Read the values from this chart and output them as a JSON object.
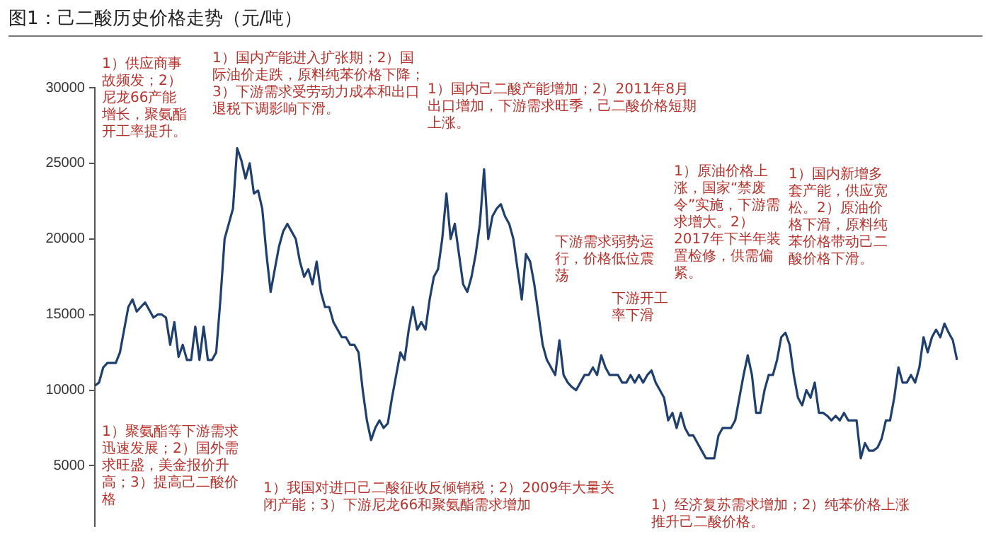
{
  "chart_data": {
    "type": "line",
    "title": "图1：己二酸历史价格走势（元/吨）",
    "categories": [
      null,
      null,
      null,
      null,
      null,
      null,
      null,
      null,
      null,
      null,
      null,
      null,
      null,
      null,
      null,
      null,
      null,
      null,
      null,
      null,
      null,
      null,
      null,
      null,
      null,
      null,
      null,
      null,
      null,
      null,
      null,
      null,
      null,
      null,
      null,
      null,
      null,
      null,
      null,
      null,
      null,
      null,
      null,
      null,
      null,
      null,
      null,
      null,
      null,
      null,
      null,
      null,
      null,
      null,
      null,
      null,
      null,
      null,
      null,
      null,
      null,
      null,
      null,
      null,
      null,
      null,
      null,
      null,
      null,
      null,
      null,
      null,
      null,
      null,
      null,
      null,
      null,
      null,
      null,
      null,
      null,
      null,
      null,
      null,
      null,
      null,
      null,
      null,
      null,
      null,
      null,
      null,
      null,
      null,
      null,
      null,
      null,
      null,
      null,
      null,
      null,
      null,
      null,
      null,
      null,
      null,
      null,
      null,
      null,
      null,
      null,
      null,
      null,
      null,
      null,
      null,
      null,
      null,
      null,
      null,
      null,
      null,
      null,
      null,
      null,
      null,
      null,
      null,
      null,
      null,
      null,
      null,
      null,
      null,
      null,
      null,
      null,
      null,
      null,
      null,
      null,
      null,
      null,
      null,
      null,
      null,
      null,
      null,
      null,
      null,
      null,
      null,
      null,
      null,
      null,
      null,
      null,
      null,
      null,
      null,
      null,
      null,
      null,
      null,
      null,
      null,
      null,
      null,
      null,
      null,
      null,
      null,
      null,
      null,
      null,
      null,
      null,
      null,
      null,
      null,
      null,
      null,
      null,
      null,
      null,
      null,
      null,
      null,
      null,
      null,
      null,
      null,
      null,
      null,
      null,
      null,
      null,
      null,
      null,
      null,
      null,
      null,
      null,
      null,
      null,
      null,
      null
    ],
    "series": [
      {
        "color": "#1f3f6e",
        "values": [
          10300,
          10500,
          11500,
          11800,
          11800,
          11800,
          12500,
          14000,
          15500,
          16000,
          15200,
          15500,
          15800,
          15300,
          14800,
          15000,
          15000,
          14800,
          13000,
          14500,
          12200,
          13000,
          12000,
          12000,
          14200,
          12000,
          14200,
          12000,
          12000,
          12500,
          16000,
          20000,
          21000,
          22000,
          26000,
          25200,
          24000,
          25000,
          23000,
          23200,
          22000,
          19000,
          16500,
          18000,
          19500,
          20500,
          21000,
          20500,
          20000,
          18500,
          17500,
          18000,
          17000,
          18500,
          16500,
          15500,
          15500,
          14500,
          14000,
          13500,
          13500,
          13000,
          13000,
          12500,
          10000,
          8000,
          6700,
          7500,
          8000,
          7500,
          7800,
          9500,
          11000,
          12500,
          12000,
          14000,
          15500,
          14000,
          14500,
          14000,
          16000,
          17500,
          18000,
          20000,
          23000,
          20000,
          21000,
          19000,
          17000,
          16500,
          17500,
          19000,
          21000,
          24600,
          20000,
          21500,
          22000,
          22300,
          21500,
          21000,
          20000,
          18000,
          16000,
          19000,
          18500,
          17000,
          15000,
          13000,
          12000,
          11500,
          11000,
          13300,
          11000,
          10500,
          10200,
          10000,
          10500,
          11000,
          11000,
          11500,
          11000,
          12300,
          11500,
          11000,
          11000,
          11000,
          10500,
          10500,
          11000,
          10500,
          11000,
          10500,
          11000,
          11300,
          10500,
          10000,
          9500,
          8000,
          8500,
          7500,
          8500,
          7500,
          7000,
          7000,
          6500,
          6000,
          5500,
          5500,
          5500,
          7000,
          7500,
          7500,
          7500,
          8000,
          9500,
          11000,
          12300,
          11000,
          8500,
          8500,
          10000,
          11000,
          11000,
          12000,
          13500,
          13800,
          13000,
          11000,
          9500,
          9000,
          10000,
          9500,
          10500,
          8500,
          8500,
          8300,
          8000,
          8300,
          8000,
          8500,
          8000,
          8000,
          8000,
          5500,
          6500,
          6000,
          6000,
          6200,
          6800,
          8000,
          8000,
          9500,
          11500,
          10500,
          10500,
          11000,
          10500,
          11500,
          13500,
          12500,
          13500,
          14000,
          13500,
          14400,
          13800,
          13300,
          12000
        ]
      }
    ],
    "ylim": [
      1000,
      30000
    ],
    "yticks": [
      5000,
      10000,
      15000,
      20000,
      25000,
      30000
    ],
    "tick_labels": "y",
    "legend": false,
    "annotations": [
      "1）供应商事故频发；2）尼龙66产能增长，聚氨酯开工率提升。",
      "1）国内产能进入扩张期；2）国际油价走跌，原料纯苯价格下降；3）下游需求受劳动力成本和出口退税下调影响下滑。",
      "1）国内己二酸产能增加；2）2011年8月出口增加，下游需求旺季，己二酸价格短期上涨。",
      "1）原油价格上涨，国家“禁废令”实施，下游需求增大。2）2017年下半年装置检修，供需偏紧。",
      "1）国内新增多套产能，供应宽松。2）原油价格下滑，原料纯苯价格带动己二酸价格下滑。",
      "下游需求弱势运行，价格低位震荡",
      "下游开工率下滑",
      "1）聚氨酯等下游需求迅速发展；2）国外需求旺盛，美金报价升高；3）提高己二酸价格",
      "1）我国对进口己二酸征收反倾销税；2）2009年大量关闭产能；3）下游尼龙66和聚氨酯需求增加",
      "1）经济复苏需求增加；2）纯苯价格上涨推升己二酸价格。"
    ]
  }
}
